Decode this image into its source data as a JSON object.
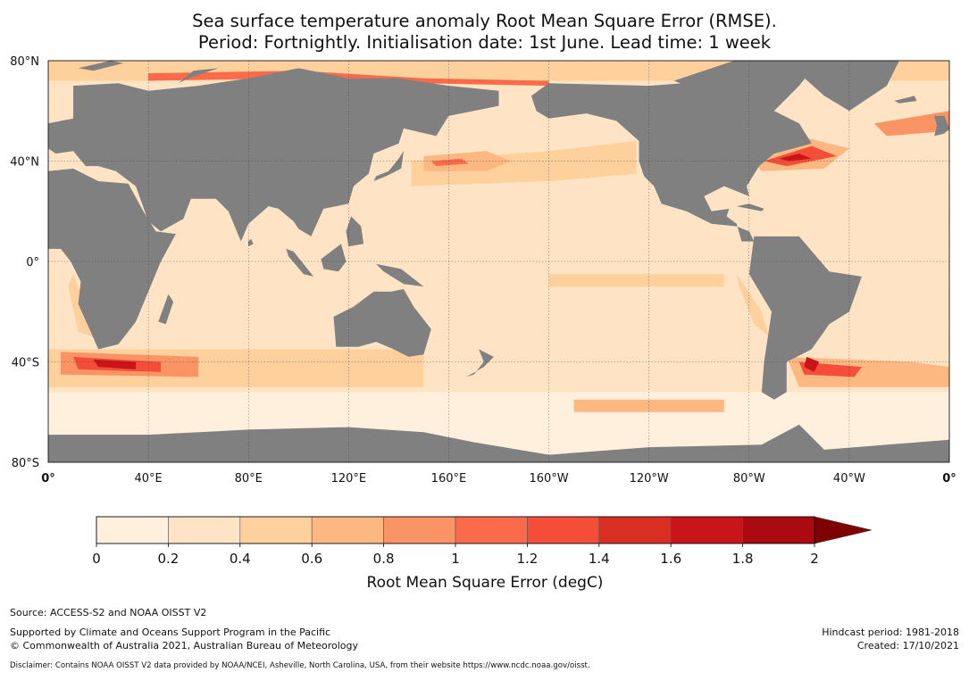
{
  "title": {
    "line1": "Sea surface temperature anomaly Root Mean Square Error (RMSE).",
    "line2": "Period: Fortnightly. Initialisation date: 1st June. Lead time: 1 week"
  },
  "map": {
    "projection": "equirectangular",
    "lon_range": [
      0,
      360
    ],
    "lat_range": [
      -80,
      80
    ],
    "land_color": "#808080",
    "grid": true,
    "lat_ticks": [
      {
        "value": 80,
        "label": "80°N"
      },
      {
        "value": 40,
        "label": "40°N"
      },
      {
        "value": 0,
        "label": "0°"
      },
      {
        "value": -40,
        "label": "40°S"
      },
      {
        "value": -80,
        "label": "80°S"
      }
    ],
    "lon_ticks": [
      {
        "value": 0,
        "label": "0°"
      },
      {
        "value": 40,
        "label": "40°E"
      },
      {
        "value": 80,
        "label": "80°E"
      },
      {
        "value": 120,
        "label": "120°E"
      },
      {
        "value": 160,
        "label": "160°E"
      },
      {
        "value": 200,
        "label": "160°W"
      },
      {
        "value": 240,
        "label": "120°W"
      },
      {
        "value": 280,
        "label": "80°W"
      },
      {
        "value": 320,
        "label": "40°W"
      },
      {
        "value": 360,
        "label": "0°"
      }
    ]
  },
  "colorbar": {
    "label": "Root Mean Square Error (degC)",
    "ticks": [
      "0",
      "0.2",
      "0.4",
      "0.6",
      "0.8",
      "1",
      "1.2",
      "1.4",
      "1.6",
      "1.8",
      "2"
    ],
    "colors": [
      "#fff0dd",
      "#fee4c4",
      "#fdd09c",
      "#fcb880",
      "#fb9464",
      "#fb6b4b",
      "#f44d38",
      "#d92e22",
      "#c9151a",
      "#ab0b10"
    ],
    "extend_color": "#7f0000",
    "extend": "max"
  },
  "footer": {
    "source": "Source: ACCESS-S2 and NOAA OISST V2",
    "support": "Supported by Climate and Oceans Support Program in the Pacific",
    "copyright": "© Commonwealth of Australia 2021, Australian Bureau of Meteorology",
    "hindcast": "Hindcast period: 1981-2018",
    "created": "Created: 17/10/2021",
    "disclaimer": "Disclaimer: Contains NOAA OISST V2 data provided by NOAA/NCEI, Asheville, North Carolina, USA, from their website https://www.ncdc.noaa.gov/oisst."
  }
}
